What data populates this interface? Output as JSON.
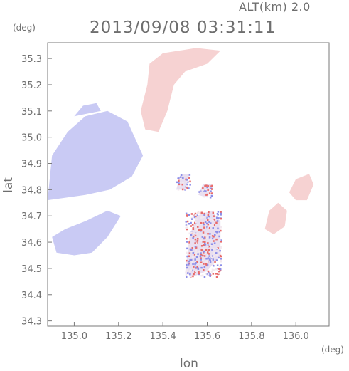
{
  "header": {
    "alt_label": "ALT(km) 2.0",
    "timestamp": "2013/09/08 03:31:11"
  },
  "chart_data": {
    "type": "heatmap",
    "title": "2013/09/08 03:31:11",
    "xlabel": "lon",
    "ylabel": "lat",
    "x_unit": "(deg)",
    "y_unit": "(deg)",
    "xlim": [
      134.88,
      136.15
    ],
    "ylim": [
      34.28,
      35.36
    ],
    "x_ticks": [
      135.0,
      135.2,
      135.4,
      135.6,
      135.8,
      136.0
    ],
    "x_tick_labels": [
      "135.0",
      "135.2",
      "135.4",
      "135.6",
      "135.8",
      "136.0"
    ],
    "y_ticks": [
      34.3,
      34.4,
      34.5,
      34.6,
      34.7,
      34.8,
      34.9,
      35.0,
      35.1,
      35.2,
      35.3
    ],
    "y_tick_labels": [
      "34.3",
      "34.4",
      "34.5",
      "34.6",
      "34.7",
      "34.8",
      "34.9",
      "35.0",
      "35.1",
      "35.2",
      "35.3"
    ],
    "grid": false,
    "colors": {
      "negative": "#c9caf4",
      "negative_strong": "#8c8ee8",
      "positive": "#f6d2d2",
      "positive_strong": "#e86a6a",
      "axis": "#7a7a7a"
    },
    "regions": [
      {
        "sign": "negative",
        "polygon": [
          [
            134.88,
            34.76
          ],
          [
            134.9,
            34.93
          ],
          [
            134.97,
            35.02
          ],
          [
            135.05,
            35.08
          ],
          [
            135.15,
            35.1
          ],
          [
            135.24,
            35.06
          ],
          [
            135.31,
            34.93
          ],
          [
            135.26,
            34.85
          ],
          [
            135.16,
            34.8
          ],
          [
            135.05,
            34.78
          ]
        ]
      },
      {
        "sign": "negative",
        "polygon": [
          [
            135.0,
            35.08
          ],
          [
            135.04,
            35.12
          ],
          [
            135.1,
            35.13
          ],
          [
            135.12,
            35.1
          ]
        ]
      },
      {
        "sign": "negative",
        "polygon": [
          [
            134.9,
            34.62
          ],
          [
            134.92,
            34.56
          ],
          [
            135.0,
            34.55
          ],
          [
            135.08,
            34.56
          ],
          [
            135.15,
            34.62
          ],
          [
            135.21,
            34.7
          ],
          [
            135.15,
            34.72
          ],
          [
            135.05,
            34.68
          ],
          [
            134.96,
            34.65
          ]
        ]
      },
      {
        "sign": "positive",
        "polygon": [
          [
            135.34,
            35.28
          ],
          [
            135.4,
            35.32
          ],
          [
            135.55,
            35.34
          ],
          [
            135.66,
            35.33
          ],
          [
            135.6,
            35.28
          ],
          [
            135.5,
            35.25
          ],
          [
            135.45,
            35.2
          ],
          [
            135.42,
            35.1
          ],
          [
            135.38,
            35.02
          ],
          [
            135.32,
            35.03
          ],
          [
            135.3,
            35.1
          ],
          [
            135.33,
            35.2
          ]
        ]
      },
      {
        "sign": "positive",
        "polygon": [
          [
            135.86,
            34.65
          ],
          [
            135.88,
            34.72
          ],
          [
            135.92,
            34.75
          ],
          [
            135.96,
            34.72
          ],
          [
            135.95,
            34.66
          ],
          [
            135.9,
            34.63
          ]
        ]
      },
      {
        "sign": "positive",
        "polygon": [
          [
            135.97,
            34.79
          ],
          [
            136.0,
            34.84
          ],
          [
            136.06,
            34.86
          ],
          [
            136.08,
            34.82
          ],
          [
            136.05,
            34.76
          ],
          [
            136.0,
            34.76
          ]
        ]
      },
      {
        "sign": "mixed",
        "polygon": [
          [
            135.5,
            34.48
          ],
          [
            135.52,
            34.62
          ],
          [
            135.55,
            34.7
          ],
          [
            135.62,
            34.72
          ],
          [
            135.66,
            34.68
          ],
          [
            135.66,
            34.55
          ],
          [
            135.6,
            34.49
          ],
          [
            135.54,
            34.47
          ]
        ]
      },
      {
        "sign": "mixed",
        "polygon": [
          [
            135.46,
            34.8
          ],
          [
            135.48,
            34.86
          ],
          [
            135.52,
            34.86
          ],
          [
            135.5,
            34.8
          ]
        ]
      },
      {
        "sign": "mixed",
        "polygon": [
          [
            135.56,
            34.78
          ],
          [
            135.58,
            34.82
          ],
          [
            135.62,
            34.82
          ],
          [
            135.6,
            34.77
          ]
        ]
      }
    ]
  }
}
